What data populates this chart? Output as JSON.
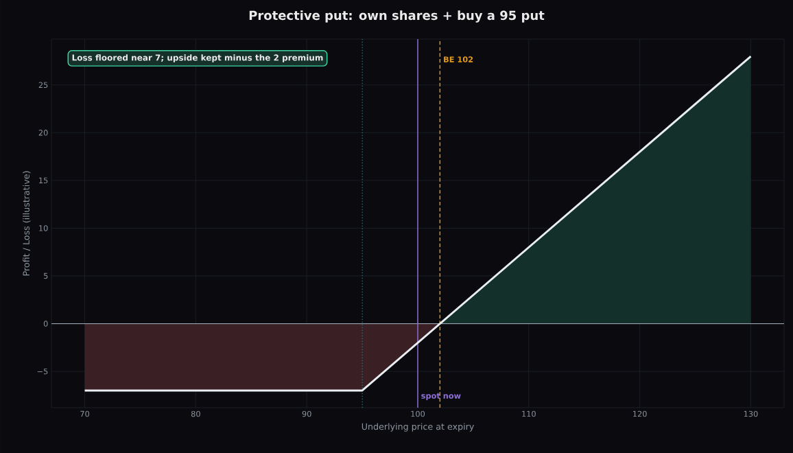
{
  "chart_data": {
    "type": "line",
    "title": "Protective put: own shares + buy a 95 put",
    "xlabel": "Underlying price at expiry",
    "ylabel": "Profit / Loss (illustrative)",
    "series": [
      {
        "type": "area",
        "color": "#3a1f24",
        "x": [
          70,
          95,
          102
        ],
        "values": [
          -7,
          -7,
          0
        ]
      },
      {
        "type": "area",
        "color": "#13302a",
        "x": [
          102,
          130
        ],
        "values": [
          0,
          28
        ]
      },
      {
        "color": "#e8eef2",
        "x": [
          70,
          95,
          130
        ],
        "values": [
          -7,
          -7,
          28
        ],
        "line_style": "solid"
      }
    ],
    "xlim": [
      67,
      133
    ],
    "ylim": [
      -8.8,
      29.8
    ],
    "xticks": [
      70,
      80,
      90,
      100,
      110,
      120,
      130
    ],
    "yticks": [
      {
        "value": -5,
        "label": "−5"
      },
      0,
      5,
      10,
      15,
      20,
      25
    ],
    "grid": true,
    "ref_lines": [
      {
        "axis": "y",
        "value": 0,
        "color": "#9aa4ae",
        "line_style": "solid"
      },
      {
        "axis": "x",
        "value": 95,
        "color": "#2a7f86",
        "line_style": "dotted"
      },
      {
        "axis": "x",
        "value": 100,
        "label": "spot now",
        "color": "#8e6fdc",
        "line_style": "solid"
      },
      {
        "axis": "x",
        "value": 102,
        "label": "BE 102",
        "color": "#e39a1c",
        "line_style": "dashed"
      }
    ],
    "annotations": [
      "Loss floored near 7; upside kept minus the 2 premium"
    ]
  }
}
